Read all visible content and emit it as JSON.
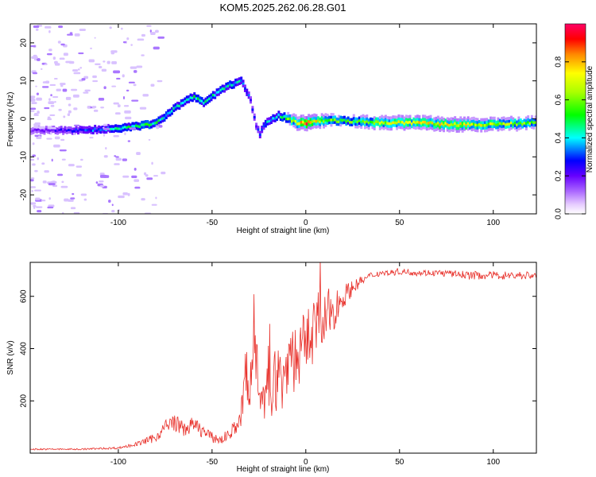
{
  "title": "KOM5.2025.262.06.28.G01",
  "chart_data": [
    {
      "type": "heatmap",
      "name": "spectrogram",
      "xlabel": "Height of straight line (km)",
      "ylabel": "Frequency (Hz)",
      "xlim": [
        -147,
        123
      ],
      "ylim": [
        -25,
        25
      ],
      "xticks": [
        -100,
        -50,
        0,
        50,
        100
      ],
      "yticks": [
        -20,
        -10,
        0,
        10,
        20
      ],
      "colorbar": {
        "label": "Normalized spectral amplitude",
        "range": [
          0,
          1
        ],
        "ticks": [
          0.0,
          0.2,
          0.4,
          0.6,
          0.8
        ],
        "colors": [
          "#ffffff",
          "#d9b3ff",
          "#8800ff",
          "#0000ff",
          "#00ffff",
          "#00ff00",
          "#ffff00",
          "#ff8800",
          "#ff0000",
          "#ff0066"
        ]
      },
      "ridge": {
        "x": [
          -147,
          -120,
          -100,
          -90,
          -80,
          -75,
          -70,
          -60,
          -55,
          -50,
          -45,
          -40,
          -35,
          -30,
          -27,
          -25,
          -22,
          -18,
          -15,
          -10,
          -5,
          0,
          10,
          20,
          40,
          60,
          80,
          100,
          123
        ],
        "freq": [
          -3,
          -3,
          -2.5,
          -2,
          -1,
          1,
          3,
          6,
          4,
          6,
          8,
          9,
          10,
          5,
          -2,
          -4,
          -1,
          0,
          1,
          0,
          -1,
          -1,
          -0.5,
          -0.5,
          -1,
          -1,
          -1.5,
          -1.5,
          -1
        ],
        "amp": [
          0.18,
          0.3,
          0.45,
          0.5,
          0.5,
          0.45,
          0.42,
          0.5,
          0.45,
          0.45,
          0.45,
          0.45,
          0.4,
          0.3,
          0.25,
          0.3,
          0.4,
          0.45,
          0.45,
          0.6,
          0.75,
          0.9,
          0.65,
          0.55,
          0.7,
          0.75,
          0.75,
          0.7,
          0.6
        ]
      }
    },
    {
      "type": "line",
      "name": "snr",
      "xlabel": "Height of straight line (km)",
      "ylabel": "SNR (v/v)",
      "xlim": [
        -147,
        123
      ],
      "ylim": [
        0,
        730
      ],
      "xticks": [
        -100,
        -50,
        0,
        50,
        100
      ],
      "yticks": [
        200,
        400,
        600
      ],
      "color": "#e8302a",
      "series": {
        "x": [
          -147,
          -120,
          -100,
          -90,
          -80,
          -75,
          -70,
          -65,
          -60,
          -55,
          -50,
          -45,
          -40,
          -35,
          -32,
          -30,
          -28,
          -25,
          -22,
          -20,
          -18,
          -15,
          -12,
          -10,
          -8,
          -5,
          -2,
          0,
          3,
          6,
          9,
          12,
          15,
          18,
          20,
          23,
          26,
          30,
          35,
          40,
          45,
          50,
          60,
          70,
          80,
          90,
          100,
          110,
          123
        ],
        "y": [
          15,
          15,
          20,
          35,
          60,
          100,
          120,
          90,
          110,
          85,
          60,
          50,
          80,
          120,
          300,
          180,
          470,
          350,
          150,
          300,
          250,
          300,
          270,
          350,
          400,
          350,
          380,
          430,
          460,
          500,
          480,
          530,
          550,
          580,
          600,
          620,
          640,
          660,
          680,
          690,
          690,
          695,
          690,
          690,
          685,
          680,
          680,
          680,
          680
        ],
        "noise": [
          3,
          3,
          4,
          8,
          18,
          28,
          34,
          28,
          30,
          26,
          20,
          18,
          26,
          34,
          150,
          110,
          230,
          170,
          90,
          140,
          120,
          140,
          120,
          150,
          160,
          130,
          140,
          120,
          130,
          140,
          110,
          100,
          80,
          60,
          45,
          35,
          25,
          18,
          14,
          12,
          12,
          12,
          12,
          12,
          14,
          16,
          16,
          16,
          16
        ]
      }
    }
  ]
}
